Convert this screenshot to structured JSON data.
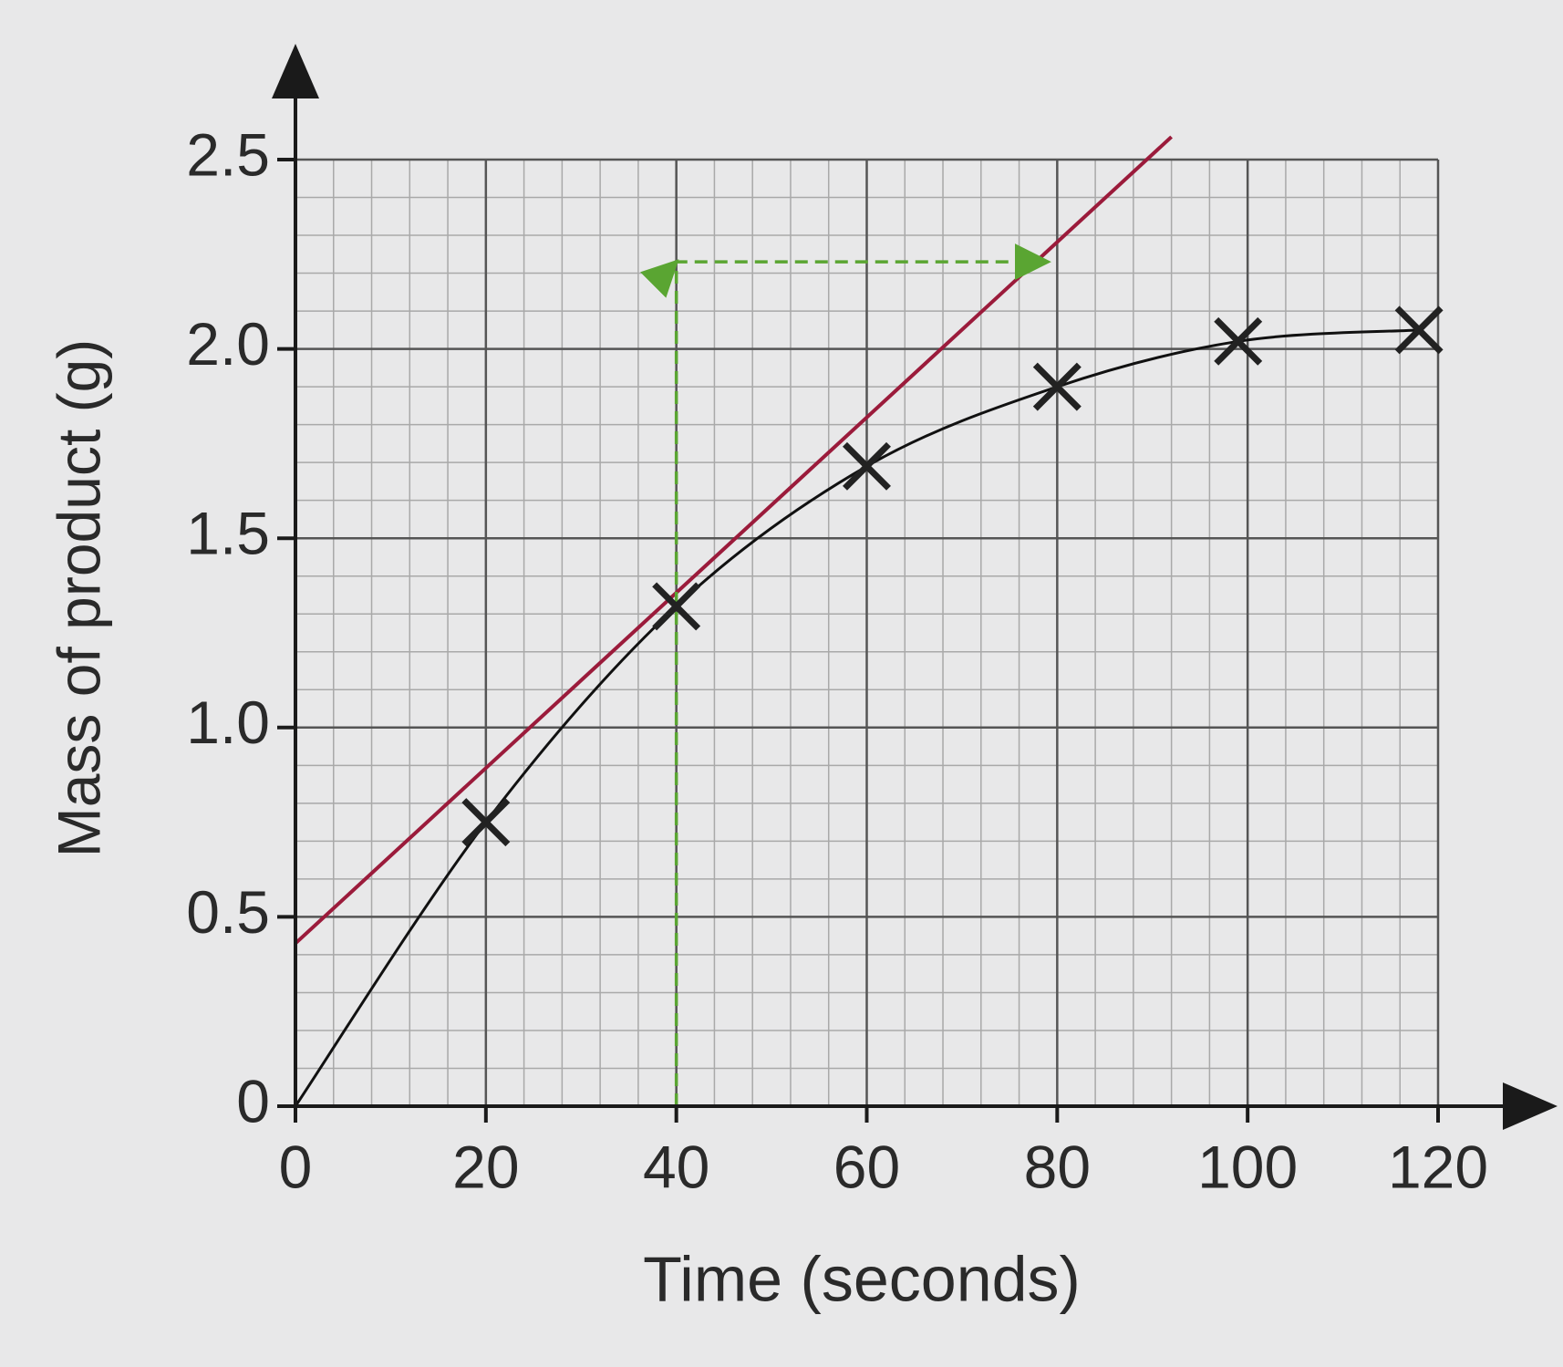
{
  "chart_data": {
    "type": "scatter",
    "xlabel": "Time (seconds)",
    "ylabel": "Mass of product (g)",
    "xlim": [
      0,
      120
    ],
    "ylim": [
      0,
      2.5
    ],
    "xticks": [
      0,
      20,
      40,
      60,
      80,
      100,
      120
    ],
    "yticks": [
      0,
      0.5,
      {
        "value": 1,
        "label": "1.0"
      },
      1.5,
      {
        "value": 2,
        "label": "2.0"
      },
      2.5
    ],
    "grid": true,
    "series": [
      {
        "style": "markers",
        "color": "#222222",
        "x": [
          20,
          40,
          60,
          80,
          99,
          118
        ],
        "values": [
          0.75,
          1.32,
          1.69,
          1.9,
          2.02,
          2.05
        ]
      },
      {
        "style": "smooth",
        "color": "#111111",
        "x": [
          0,
          20,
          40,
          60,
          80,
          99,
          118
        ],
        "values": [
          0,
          0.75,
          1.32,
          1.69,
          1.9,
          2.02,
          2.05
        ]
      },
      {
        "style": "line",
        "color": "#9b1b3b",
        "x": [
          0,
          92
        ],
        "values": [
          0.43,
          2.56
        ]
      },
      {
        "style": "dashed-arrows",
        "color": "#5aa532",
        "x": [
          40,
          40,
          79
        ],
        "values": [
          0,
          2.23,
          2.23
        ]
      }
    ]
  }
}
